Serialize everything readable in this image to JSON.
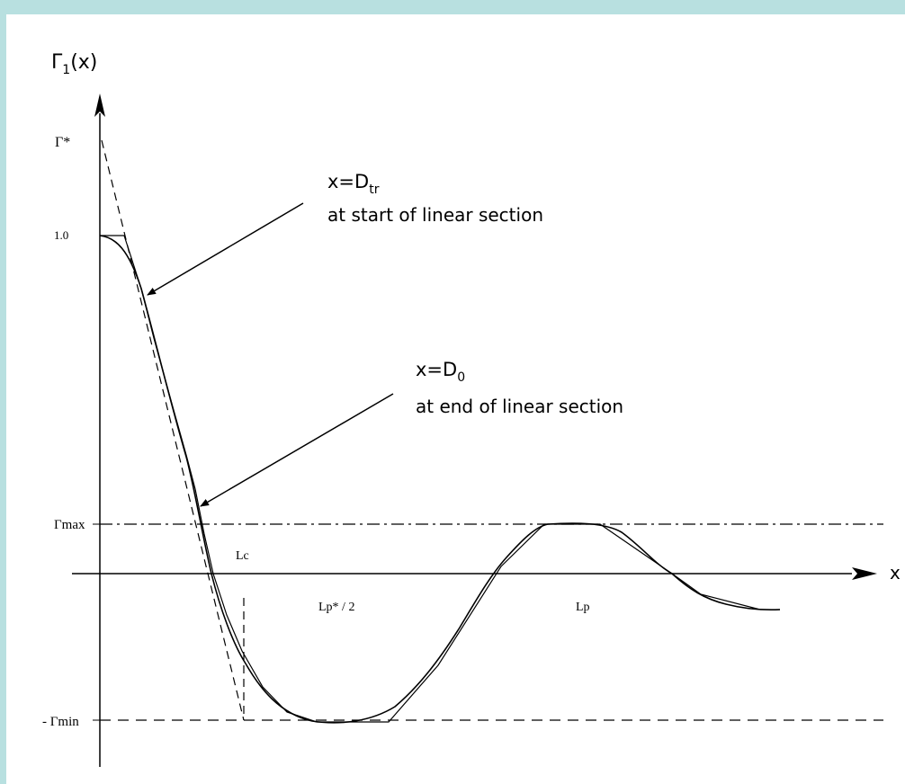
{
  "diagram": {
    "y_axis_label": {
      "main": "Γ",
      "sub": "1",
      "rest": "(x)"
    },
    "x_axis_label": "x",
    "y_ticks": {
      "gamma_star": "Γ*",
      "one": "1.0",
      "gamma_max": "Γmax",
      "neg_gamma_min": "- Γmin"
    },
    "markers": {
      "lc": "Lc",
      "lp_half": "Lp* / 2",
      "lp": "Lp"
    },
    "annotations": {
      "start": {
        "line1_prefix": "x=D",
        "line1_sub": "tr",
        "line2": "at start of linear section"
      },
      "end": {
        "line1_prefix": "x=D",
        "line1_sub": "0",
        "line2": "at end of linear section"
      }
    },
    "colors": {
      "background": "#b8e0e0",
      "panel": "#ffffff",
      "ink": "#000000"
    }
  }
}
